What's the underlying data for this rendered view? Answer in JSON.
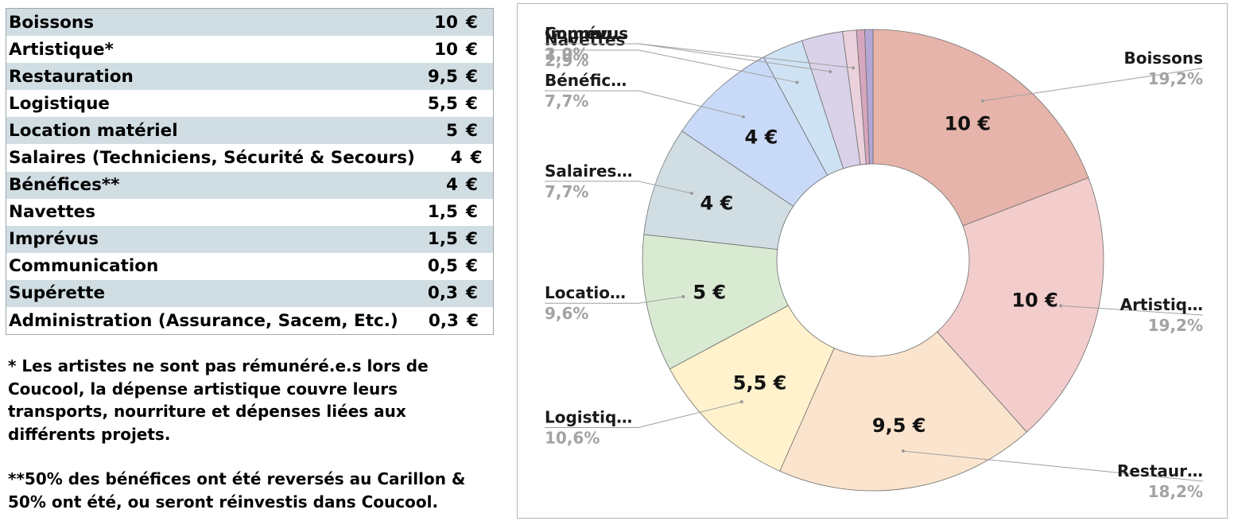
{
  "table": {
    "rows": [
      {
        "label": "Boissons",
        "value": "10",
        "currency": "€"
      },
      {
        "label": "Artistique*",
        "value": "10",
        "currency": "€"
      },
      {
        "label": "Restauration",
        "value": "9,5",
        "currency": "€"
      },
      {
        "label": "Logistique",
        "value": "5,5",
        "currency": "€"
      },
      {
        "label": "Location matériel",
        "value": "5",
        "currency": "€"
      },
      {
        "label": "Salaires (Techniciens, Sécurité & Secours)",
        "value": "4",
        "currency": "€"
      },
      {
        "label": "Bénéfices**",
        "value": "4",
        "currency": "€"
      },
      {
        "label": "Navettes",
        "value": "1,5",
        "currency": "€"
      },
      {
        "label": "Imprévus",
        "value": "1,5",
        "currency": "€"
      },
      {
        "label": "Communication",
        "value": "0,5",
        "currency": "€"
      },
      {
        "label": "Supérette",
        "value": "0,3",
        "currency": "€"
      },
      {
        "label": "Administration (Assurance, Sacem, Etc.)",
        "value": "0,3",
        "currency": "€"
      }
    ]
  },
  "notes": {
    "artistic": "* Les artistes ne sont pas rémunéré.e.s lors de Coucool, la dépense artistique couvre leurs transports, nourriture et dépenses liées aux différents projets.",
    "profits": "**50% des bénéfices ont été reversés au Carillon & 50% ont été, ou seront réinvestis dans Coucool."
  },
  "chart_data": {
    "type": "pie",
    "variant": "donut",
    "title": "",
    "legend": "none",
    "slices": [
      {
        "value": 10,
        "value_label": "10  €",
        "label": "Boissons",
        "percent": "19,2%",
        "color": "#e6b4aa"
      },
      {
        "value": 10,
        "value_label": "10  €",
        "label": "Artistiq…",
        "percent": "19,2%",
        "color": "#f3cccc"
      },
      {
        "value": 9.5,
        "value_label": "9,5  €",
        "label": "Restaur…",
        "percent": "18,2%",
        "color": "#fbe4cd"
      },
      {
        "value": 5.5,
        "value_label": "5,5  €",
        "label": "Logistiq…",
        "percent": "10,6%",
        "color": "#fff2cc"
      },
      {
        "value": 5,
        "value_label": "5  €",
        "label": "Locatio…",
        "percent": "9,6%",
        "color": "#d9ead3"
      },
      {
        "value": 4,
        "value_label": "4  €",
        "label": "Salaires…",
        "percent": "7,7%",
        "color": "#d0dde2"
      },
      {
        "value": 4,
        "value_label": "4  €",
        "label": "Bénéfic…",
        "percent": "7,7%",
        "color": "#c9daf8"
      },
      {
        "value": 1.5,
        "value_label": "",
        "label": "Navettes",
        "percent": "2,9%",
        "color": "#cfe2f3"
      },
      {
        "value": 1.5,
        "value_label": "",
        "label": "Imprévus",
        "percent": "2,9%",
        "color": "#d9d2e9"
      },
      {
        "value": 0.5,
        "value_label": "",
        "label": "Commu…",
        "percent": "1,0%",
        "color": "#ead1dc"
      },
      {
        "value": 0.3,
        "value_label": "",
        "label": "",
        "percent": "",
        "color": "#d5a6bd"
      },
      {
        "value": 0.3,
        "value_label": "",
        "label": "",
        "percent": "",
        "color": "#b4a7d6"
      }
    ]
  }
}
